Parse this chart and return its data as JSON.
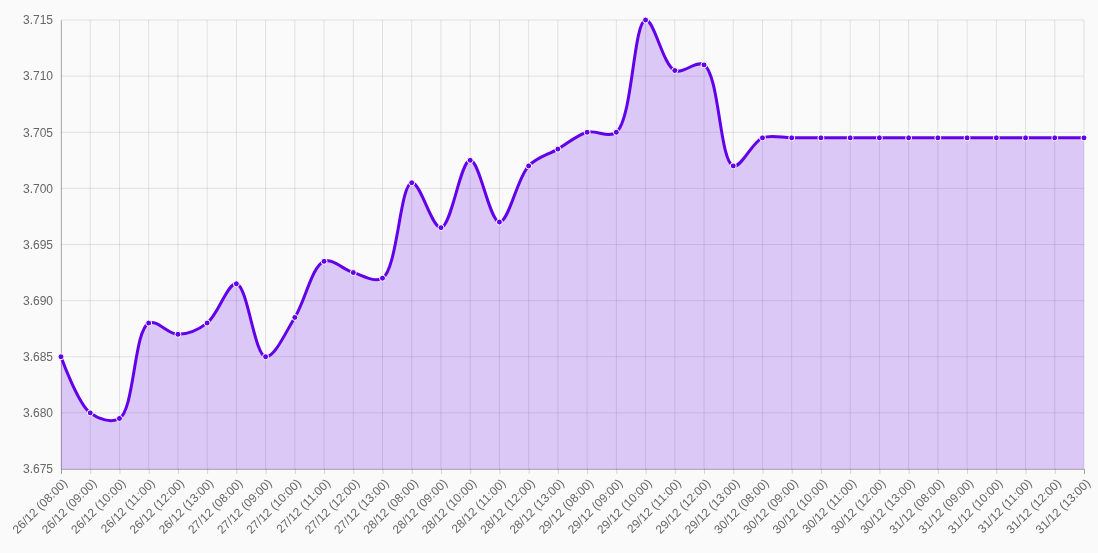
{
  "chart_data": {
    "type": "area",
    "categories": [
      "26/12 (08:00)",
      "26/12 (09:00)",
      "26/12 (10:00)",
      "26/12 (11:00)",
      "26/12 (12:00)",
      "26/12 (13:00)",
      "27/12 (08:00)",
      "27/12 (09:00)",
      "27/12 (10:00)",
      "27/12 (11:00)",
      "27/12 (12:00)",
      "27/12 (13:00)",
      "28/12 (08:00)",
      "28/12 (09:00)",
      "28/12 (10:00)",
      "28/12 (11:00)",
      "28/12 (12:00)",
      "28/12 (13:00)",
      "29/12 (08:00)",
      "29/12 (09:00)",
      "29/12 (10:00)",
      "29/12 (11:00)",
      "29/12 (12:00)",
      "29/12 (13:00)",
      "30/12 (08:00)",
      "30/12 (09:00)",
      "30/12 (10:00)",
      "30/12 (11:00)",
      "30/12 (12:00)",
      "30/12 (13:00)",
      "31/12 (08:00)",
      "31/12 (09:00)",
      "31/12 (10:00)",
      "31/12 (11:00)",
      "31/12 (12:00)",
      "31/12 (13:00)"
    ],
    "series": [
      {
        "color": "#6200ea",
        "values": [
          3.685,
          3.68,
          3.6795,
          3.688,
          3.687,
          3.688,
          3.6915,
          3.685,
          3.6885,
          3.6935,
          3.6925,
          3.692,
          3.7005,
          3.6965,
          3.7025,
          3.697,
          3.702,
          3.7035,
          3.705,
          3.705,
          3.715,
          3.7105,
          3.711,
          3.702,
          3.7045,
          3.7045,
          3.7045,
          3.7045,
          3.7045,
          3.7045,
          3.7045,
          3.7045,
          3.7045,
          3.7045,
          3.7045,
          3.7045
        ]
      }
    ],
    "ylim": [
      3.675,
      3.715
    ],
    "yticks": [
      3.675,
      {
        "value": 3.68,
        "label": "3.680"
      },
      3.685,
      {
        "value": 3.69,
        "label": "3.690"
      },
      3.695,
      {
        "value": 3.7,
        "label": "3.700"
      },
      3.705,
      {
        "value": 3.71,
        "label": "3.710"
      },
      3.715
    ],
    "grid": true,
    "marker": "circle",
    "line_style": "solid"
  }
}
